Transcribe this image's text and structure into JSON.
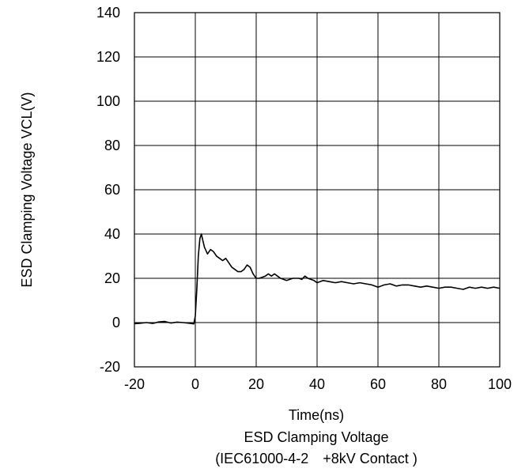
{
  "chart_data": {
    "type": "line",
    "xlabel": "Time(ns)",
    "ylabel": "ESD Clamping Voltage VCL(V)",
    "title": "ESD Clamping Voltage",
    "subtitle": "(IEC61000-4-2　+8kV Contact )",
    "xlim": [
      -20,
      100
    ],
    "ylim": [
      -20,
      140
    ],
    "xticks": [
      "-20",
      "0",
      "20",
      "40",
      "60",
      "80",
      "100"
    ],
    "yticks": [
      "140",
      "120",
      "100",
      "80",
      "60",
      "40",
      "20",
      "0",
      "-20"
    ],
    "grid": true,
    "series": [
      {
        "color": "#000000",
        "x": [
          -20,
          -18,
          -16,
          -14,
          -12,
          -10,
          -8,
          -6,
          -4,
          -2,
          -0.5,
          0,
          0.5,
          1,
          1.5,
          2,
          2.5,
          3,
          4,
          5,
          6,
          7,
          8,
          9,
          10,
          11,
          12,
          13,
          14,
          15,
          16,
          17,
          18,
          19,
          20,
          21,
          22,
          23,
          24,
          25,
          26,
          27,
          28,
          30,
          32,
          34,
          35,
          36,
          37,
          38,
          39,
          40,
          42,
          44,
          46,
          48,
          50,
          52,
          54,
          56,
          58,
          60,
          62,
          64,
          66,
          68,
          70,
          72,
          74,
          76,
          78,
          80,
          82,
          84,
          86,
          88,
          90,
          92,
          94,
          96,
          98,
          100
        ],
        "y": [
          -0.5,
          -0.3,
          0,
          -0.4,
          0.3,
          0.5,
          -0.2,
          0.2,
          0,
          -0.3,
          -0.6,
          3,
          15,
          30,
          38,
          40,
          37,
          34,
          31,
          33,
          32,
          30,
          29,
          28,
          29,
          27,
          25,
          24,
          23,
          23,
          24,
          26,
          25,
          22,
          20,
          20,
          20.5,
          21,
          22,
          21,
          22,
          21,
          20,
          19,
          20,
          20,
          19.5,
          21,
          20,
          19.5,
          19,
          18,
          19,
          18.5,
          18,
          18.5,
          18,
          17.5,
          18,
          17.5,
          17,
          16,
          17,
          17.5,
          16.5,
          17,
          17,
          16.5,
          16,
          16.5,
          16,
          15.5,
          16,
          16,
          15.5,
          15,
          16,
          15.5,
          16,
          15.5,
          16,
          15.5
        ]
      }
    ]
  }
}
